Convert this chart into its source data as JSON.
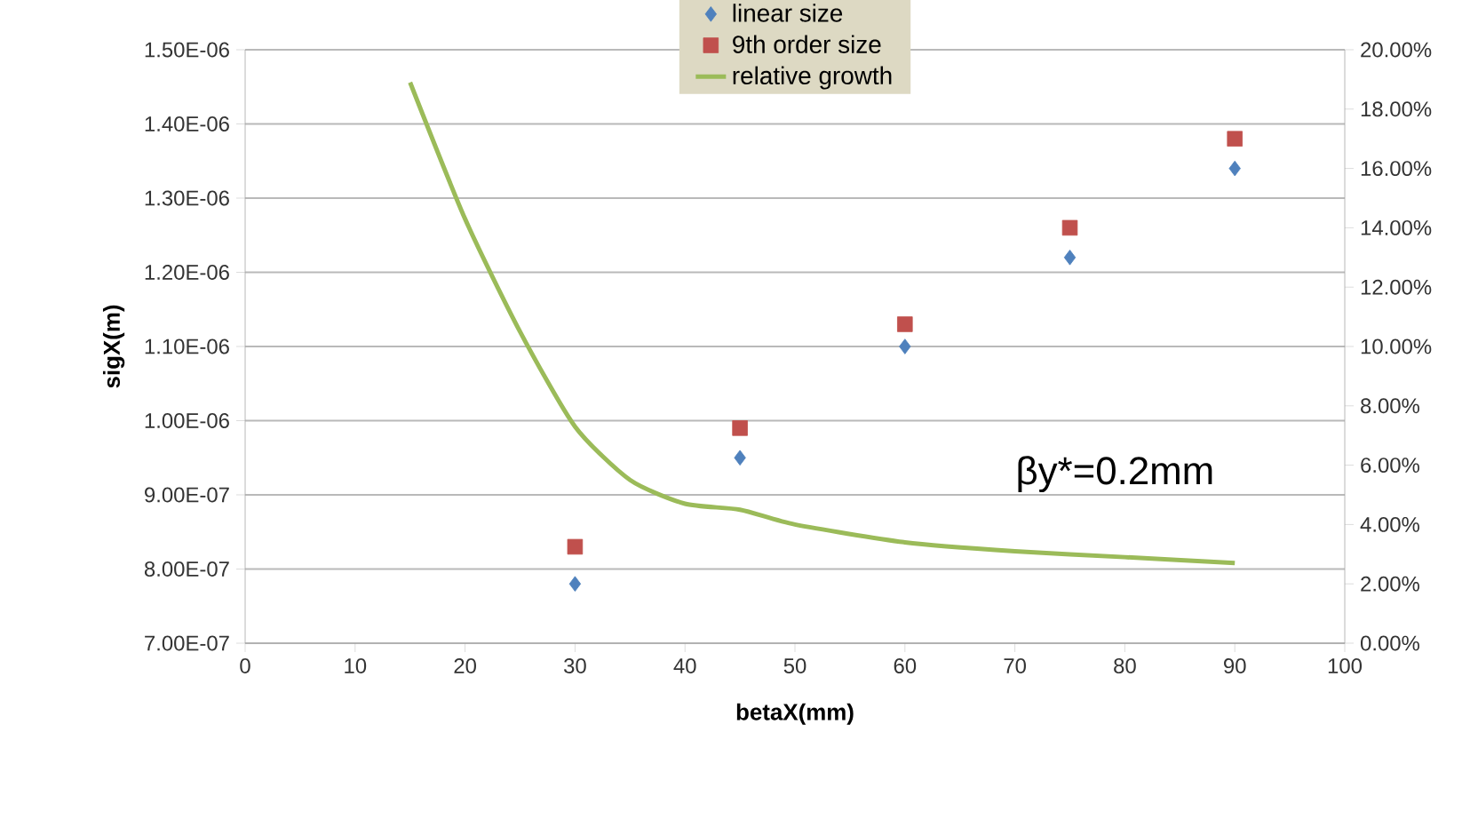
{
  "chart_data": {
    "type": "scatter",
    "xlabel": "betaX(mm)",
    "ylabel": "sigX(m)",
    "xlim": [
      0,
      100
    ],
    "xticks": [
      0,
      10,
      20,
      30,
      40,
      50,
      60,
      70,
      80,
      90,
      100
    ],
    "ylim": [
      7e-07,
      1.5e-06
    ],
    "yticks": [
      {
        "value": 7e-07,
        "label": "7.00E-07"
      },
      {
        "value": 8e-07,
        "label": "8.00E-07"
      },
      {
        "value": 9e-07,
        "label": "9.00E-07"
      },
      {
        "value": 1e-06,
        "label": "1.00E-06"
      },
      {
        "value": 1.1e-06,
        "label": "1.10E-06"
      },
      {
        "value": 1.2e-06,
        "label": "1.20E-06"
      },
      {
        "value": 1.3e-06,
        "label": "1.30E-06"
      },
      {
        "value": 1.4e-06,
        "label": "1.40E-06"
      },
      {
        "value": 1.5e-06,
        "label": "1.50E-06"
      }
    ],
    "y2lim": [
      0,
      20
    ],
    "y2ticks": [
      {
        "value": 0,
        "label": "0.00%"
      },
      {
        "value": 2,
        "label": "2.00%"
      },
      {
        "value": 4,
        "label": "4.00%"
      },
      {
        "value": 6,
        "label": "6.00%"
      },
      {
        "value": 8,
        "label": "8.00%"
      },
      {
        "value": 10,
        "label": "10.00%"
      },
      {
        "value": 12,
        "label": "12.00%"
      },
      {
        "value": 14,
        "label": "14.00%"
      },
      {
        "value": 16,
        "label": "16.00%"
      },
      {
        "value": 18,
        "label": "18.00%"
      },
      {
        "value": 20,
        "label": "20.00%"
      }
    ],
    "grid": "y",
    "legend": "top",
    "annotations": [
      "βy*=0.2mm"
    ],
    "series": [
      {
        "name": "linear size",
        "marker": "diamond",
        "color": "#4f81bd",
        "x": [
          30,
          45,
          60,
          75,
          90
        ],
        "values": [
          7.8e-07,
          9.5e-07,
          1.1e-06,
          1.22e-06,
          1.34e-06
        ]
      },
      {
        "name": "9th order size",
        "marker": "square",
        "color": "#c0504d",
        "x": [
          30,
          45,
          60,
          75,
          90
        ],
        "values": [
          8.3e-07,
          9.9e-07,
          1.13e-06,
          1.26e-06,
          1.38e-06
        ]
      },
      {
        "name": "relative growth",
        "type": "line",
        "marker": "none",
        "axis": "y2",
        "color": "#9bbb59",
        "x": [
          15,
          20,
          25,
          30,
          35,
          40,
          45,
          50,
          60,
          70,
          80,
          90
        ],
        "values": [
          18.9,
          14.3,
          10.5,
          7.3,
          5.5,
          4.7,
          4.5,
          4.0,
          3.4,
          3.1,
          2.9,
          2.7
        ]
      }
    ]
  }
}
